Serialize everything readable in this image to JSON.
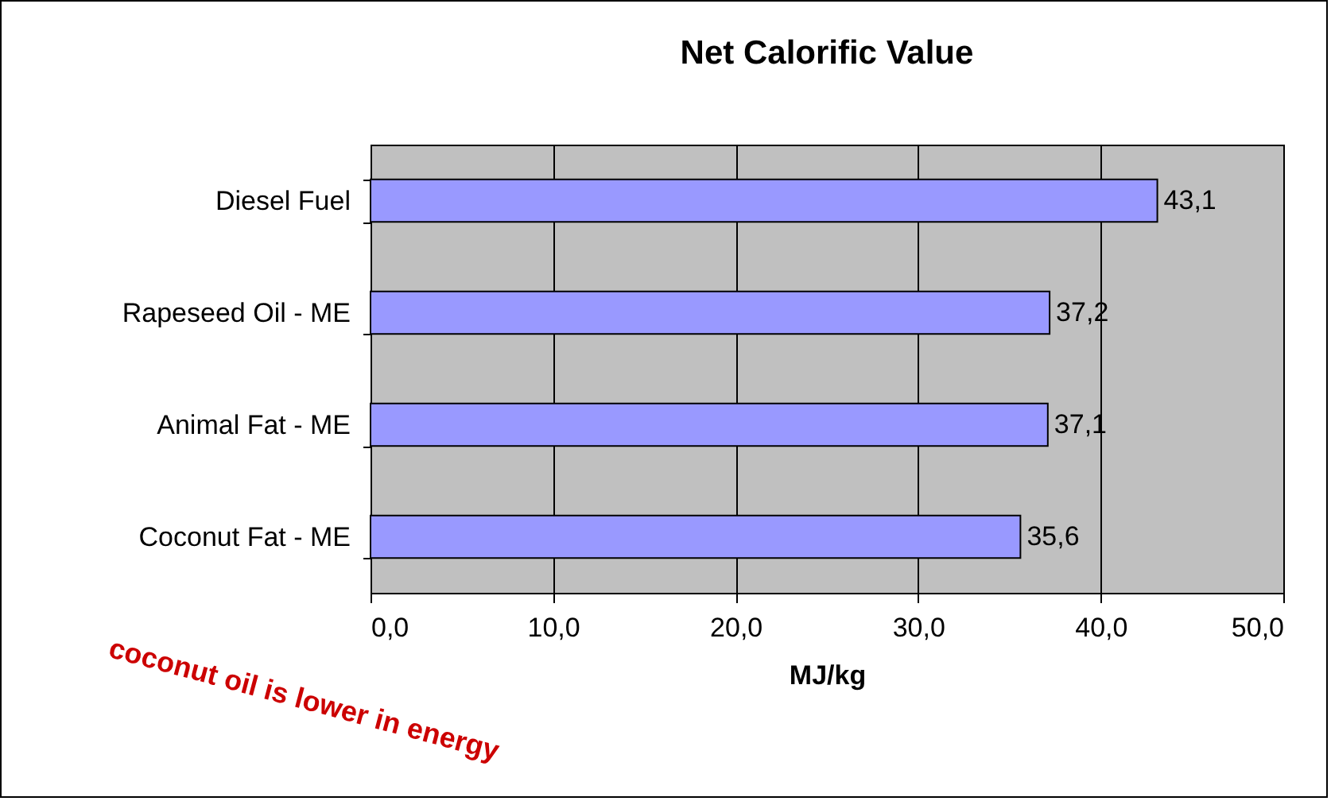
{
  "chart_data": {
    "type": "bar",
    "orientation": "horizontal",
    "title": "Net Calorific Value",
    "xlabel": "MJ/kg",
    "categories": [
      "Diesel Fuel",
      "Rapeseed Oil - ME",
      "Animal Fat - ME",
      "Coconut Fat - ME"
    ],
    "values": [
      43.1,
      37.2,
      37.1,
      35.6
    ],
    "value_labels": [
      "43,1",
      "37,2",
      "37,1",
      "35,6"
    ],
    "color": "#9999ff",
    "xlim": [
      0,
      50
    ],
    "xticks": [
      {
        "value": 0,
        "label": "0,0"
      },
      {
        "value": 10,
        "label": "10,0"
      },
      {
        "value": 20,
        "label": "20,0"
      },
      {
        "value": 30,
        "label": "30,0"
      },
      {
        "value": 40,
        "label": "40,0"
      },
      {
        "value": 50,
        "label": "50,0"
      }
    ],
    "grid": "x",
    "annotations": [
      "coconut oil is lower in energy"
    ]
  }
}
